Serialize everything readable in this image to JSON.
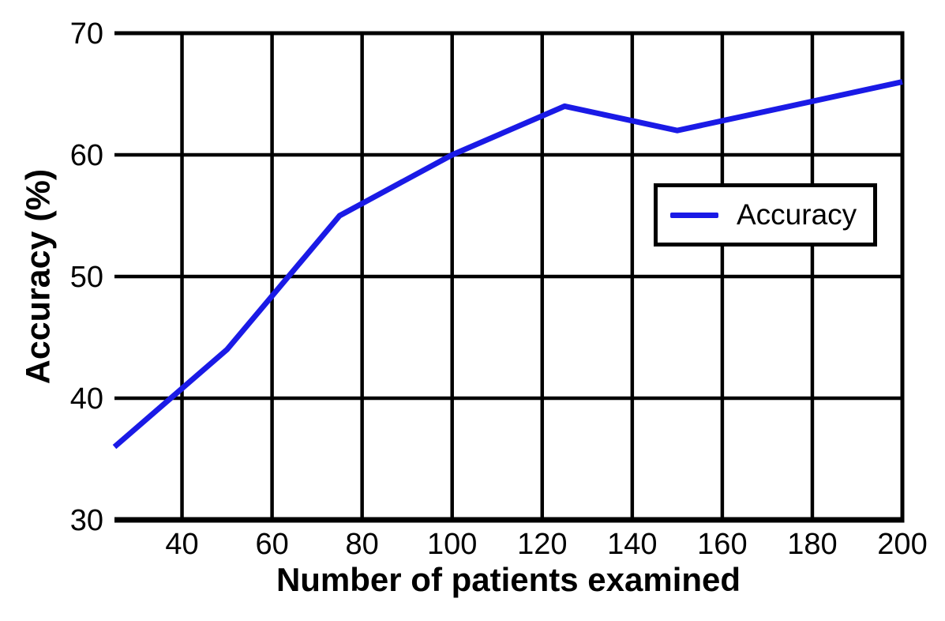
{
  "chart_data": {
    "type": "line",
    "title": "",
    "xlabel": "Number of patients examined",
    "ylabel": "Accuracy (%)",
    "xlim": [
      25,
      200
    ],
    "ylim": [
      30,
      70
    ],
    "xticks": [
      40,
      60,
      80,
      100,
      120,
      140,
      160,
      180,
      200
    ],
    "yticks": [
      30,
      40,
      50,
      60,
      70
    ],
    "grid": true,
    "legend": {
      "position": "upper right",
      "entries": [
        "Accuracy"
      ]
    },
    "series": [
      {
        "name": "Accuracy",
        "color": "#1a1ae6",
        "x": [
          25,
          50,
          75,
          100,
          125,
          150,
          175,
          200
        ],
        "values": [
          36,
          44,
          55,
          60,
          64,
          62,
          64,
          66
        ]
      }
    ]
  },
  "colors": {
    "background": "#ffffff",
    "grid": "#000000",
    "text": "#000000",
    "accent_line": "#1a1ae6"
  }
}
